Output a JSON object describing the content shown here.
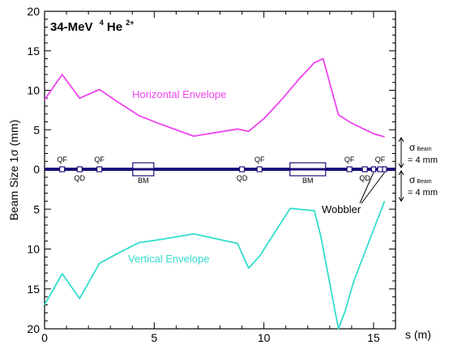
{
  "chart_data": {
    "type": "line",
    "title": "34-MeV",
    "title_isotope_mass": "4",
    "title_element": "He",
    "title_charge": "2+",
    "xlabel": "s (m)",
    "ylabel": "Beam Size 1σ  (mm)",
    "xlim": [
      0,
      16
    ],
    "ylim_top": [
      0,
      20
    ],
    "ylim_bottom": [
      0,
      20
    ],
    "x_ticks": [
      "0",
      "5",
      "10",
      "15"
    ],
    "y_ticks_top": [
      "20",
      "15",
      "10",
      "5",
      "0"
    ],
    "y_ticks_bottom": [
      "5",
      "10",
      "15",
      "20"
    ],
    "series": [
      {
        "name": "Horizontal Envelope",
        "color": "#ee44ee",
        "side": "top",
        "x": [
          0.0,
          0.8,
          1.6,
          2.5,
          3.3,
          4.3,
          5.3,
          6.8,
          8.8,
          9.3,
          10.0,
          10.8,
          11.6,
          12.3,
          12.7,
          13.4,
          13.9,
          14.4,
          15.0,
          15.5
        ],
        "y": [
          8.8,
          12.0,
          9.0,
          10.1,
          8.6,
          6.8,
          5.7,
          4.2,
          5.1,
          4.8,
          6.4,
          8.8,
          11.4,
          13.5,
          14.0,
          6.9,
          6.0,
          5.3,
          4.5,
          4.1
        ]
      },
      {
        "name": "Vertical Envelope",
        "color": "#33ddcc",
        "side": "bottom",
        "x": [
          0.0,
          0.8,
          1.6,
          2.5,
          3.3,
          4.3,
          5.3,
          6.8,
          8.8,
          9.3,
          9.8,
          11.2,
          12.3,
          12.6,
          13.4,
          13.7,
          14.1,
          15.5
        ],
        "y": [
          17.0,
          13.1,
          16.2,
          11.8,
          10.6,
          9.2,
          8.8,
          8.1,
          9.3,
          12.4,
          10.9,
          4.9,
          5.2,
          8.5,
          20.0,
          17.8,
          14.0,
          4.0
        ]
      }
    ],
    "elements": [
      {
        "label": "QF",
        "s": 0.8,
        "kind": "quad",
        "label_pos": "above"
      },
      {
        "label": "QD",
        "s": 1.6,
        "kind": "quad",
        "label_pos": "below"
      },
      {
        "label": "QF",
        "s": 2.5,
        "kind": "quad",
        "label_pos": "above"
      },
      {
        "label": "BM",
        "s": 4.5,
        "kind": "bend",
        "label_pos": "below"
      },
      {
        "label": "QD",
        "s": 9.0,
        "kind": "quad",
        "label_pos": "below"
      },
      {
        "label": "QF",
        "s": 9.8,
        "kind": "quad",
        "label_pos": "above"
      },
      {
        "label": "BM",
        "s": 12.0,
        "kind": "bend",
        "label_pos": "below"
      },
      {
        "label": "QF",
        "s": 13.9,
        "kind": "quad",
        "label_pos": "above"
      },
      {
        "label": "QD",
        "s": 14.6,
        "kind": "quad",
        "label_pos": "below"
      },
      {
        "label": "QF",
        "s": 15.3,
        "kind": "quad",
        "label_pos": "above"
      }
    ],
    "extra_boxes_s": [
      15.0,
      15.5
    ],
    "side_notes": {
      "top": {
        "symbol": "σ",
        "subscript": "Beam",
        "value": "= 4 mm"
      },
      "bottom": {
        "symbol": "σ",
        "subscript": "Beam",
        "value": "= 4 mm"
      }
    },
    "wobbler_label": "Wobbler",
    "grid": false,
    "legend": "inline-labels"
  }
}
